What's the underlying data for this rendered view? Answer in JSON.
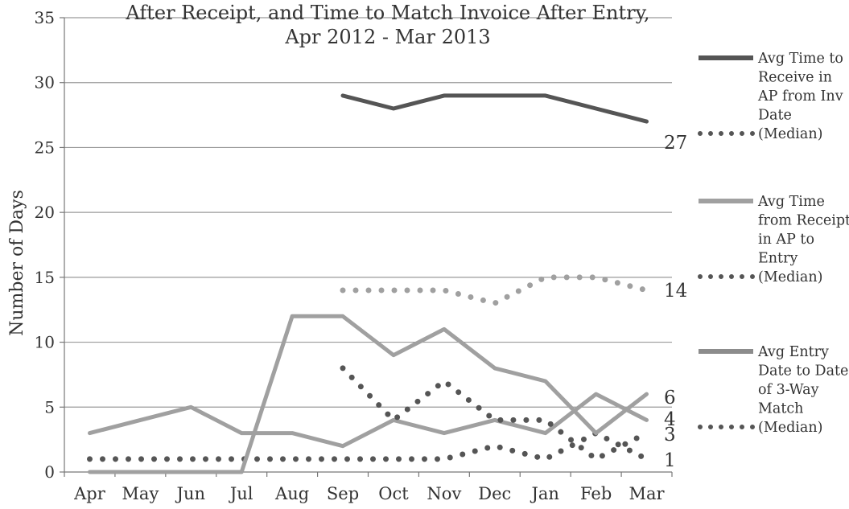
{
  "chart_data": {
    "type": "line",
    "title_lines": [
      "After Receipt, and Time to Match Invoice After Entry,",
      "Apr 2012 - Mar 2013"
    ],
    "ylabel": "Number of Days",
    "categories": [
      "Apr",
      "May",
      "Jun",
      "Jul",
      "Aug",
      "Sep",
      "Oct",
      "Nov",
      "Dec",
      "Jan",
      "Feb",
      "Mar"
    ],
    "ylim": [
      0,
      35
    ],
    "yticks": [
      0,
      5,
      10,
      15,
      20,
      25,
      30,
      35
    ],
    "grid": true,
    "legend_position": "right",
    "series": [
      {
        "name": "Avg Time to Receive in AP from Inv Date",
        "style": "solid",
        "color": "#555555",
        "values": [
          null,
          null,
          null,
          null,
          null,
          29,
          28,
          29,
          29,
          29,
          28,
          27
        ]
      },
      {
        "name": "(Median)",
        "legend_group": 0,
        "style": "dotted",
        "color": "#555555",
        "values": [
          1,
          1,
          1,
          1,
          1,
          1,
          1,
          1,
          2,
          1,
          3,
          1
        ]
      },
      {
        "name": "Avg Time from Receipt in AP to Entry",
        "style": "solid",
        "color": "#a0a0a0",
        "values": [
          3,
          4,
          5,
          3,
          3,
          2,
          4,
          3,
          4,
          3,
          6,
          4
        ]
      },
      {
        "name": "(Median)",
        "legend_group": 1,
        "style": "dotted",
        "color": "#a0a0a0",
        "values": [
          null,
          null,
          null,
          null,
          null,
          14,
          14,
          14,
          13,
          15,
          15,
          14
        ]
      },
      {
        "name": "Avg Entry Date to Date of 3-Way Match",
        "style": "solid",
        "color": "#a0a0a0",
        "values": [
          0,
          0,
          0,
          0,
          12,
          12,
          9,
          11,
          8,
          7,
          3,
          6
        ]
      },
      {
        "name": "(Median)",
        "legend_group": 2,
        "style": "dotted",
        "color": "#555555",
        "values": [
          null,
          null,
          null,
          null,
          null,
          8,
          4,
          7,
          4,
          4,
          1,
          3
        ]
      }
    ],
    "end_labels": [
      "27",
      "14",
      "6",
      "4",
      "3",
      "1"
    ],
    "legend": [
      {
        "lines": [
          "Avg Time to",
          "Receive in",
          "AP from Inv",
          "Date"
        ],
        "median_label": "(Median)",
        "color": "#555555",
        "median_color": "#555555"
      },
      {
        "lines": [
          "Avg Time",
          "from Receipt",
          "in AP to",
          "Entry"
        ],
        "median_label": "(Median)",
        "color": "#a0a0a0",
        "median_color": "#555555"
      },
      {
        "lines": [
          "Avg Entry",
          "Date to Date",
          "of 3-Way",
          "Match"
        ],
        "median_label": "(Median)",
        "color": "#8c8c8c",
        "median_color": "#555555"
      }
    ]
  }
}
